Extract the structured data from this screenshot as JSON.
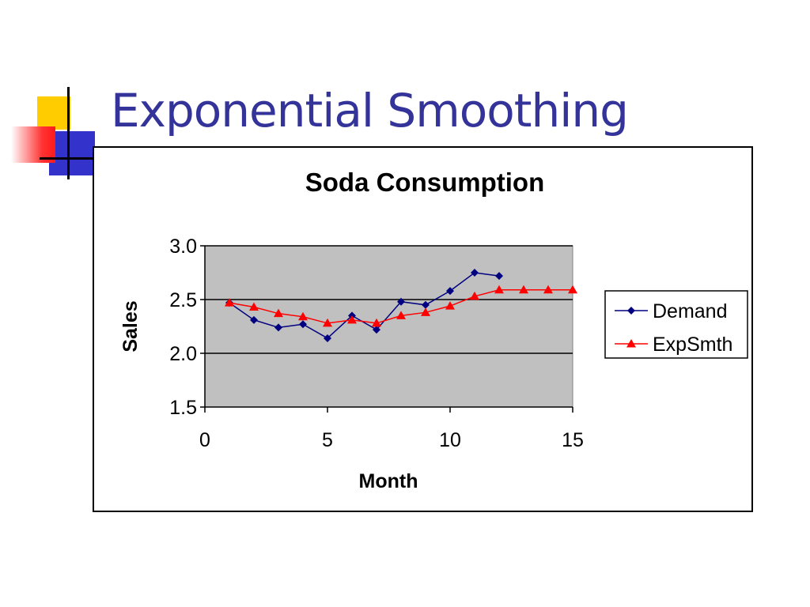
{
  "slide": {
    "title": "Exponential Smoothing",
    "title_color": "#333399"
  },
  "chart_data": {
    "type": "line",
    "title": "Soda Consumption",
    "xlabel": "Month",
    "ylabel": "Sales",
    "xlim": [
      0,
      15
    ],
    "ylim": [
      1.5,
      3.0
    ],
    "xticks": [
      "0",
      "5",
      "10",
      "15"
    ],
    "yticks": [
      "1.5",
      "2.0",
      "2.5",
      "3.0"
    ],
    "grid": true,
    "plot_background": "#c0c0c0",
    "legend_position": "right",
    "series": [
      {
        "name": "Demand",
        "color": "#000080",
        "marker": "diamond",
        "x": [
          1,
          2,
          3,
          4,
          5,
          6,
          7,
          8,
          9,
          10,
          11,
          12
        ],
        "y": [
          2.47,
          2.31,
          2.24,
          2.27,
          2.14,
          2.35,
          2.22,
          2.48,
          2.45,
          2.58,
          2.75,
          2.72
        ]
      },
      {
        "name": "ExpSmth",
        "color": "#ff0000",
        "marker": "triangle",
        "x": [
          1,
          2,
          3,
          4,
          5,
          6,
          7,
          8,
          9,
          10,
          11,
          12,
          13,
          14,
          15
        ],
        "y": [
          2.47,
          2.43,
          2.37,
          2.34,
          2.28,
          2.31,
          2.28,
          2.35,
          2.38,
          2.44,
          2.53,
          2.59,
          2.59,
          2.59,
          2.59
        ]
      }
    ]
  }
}
